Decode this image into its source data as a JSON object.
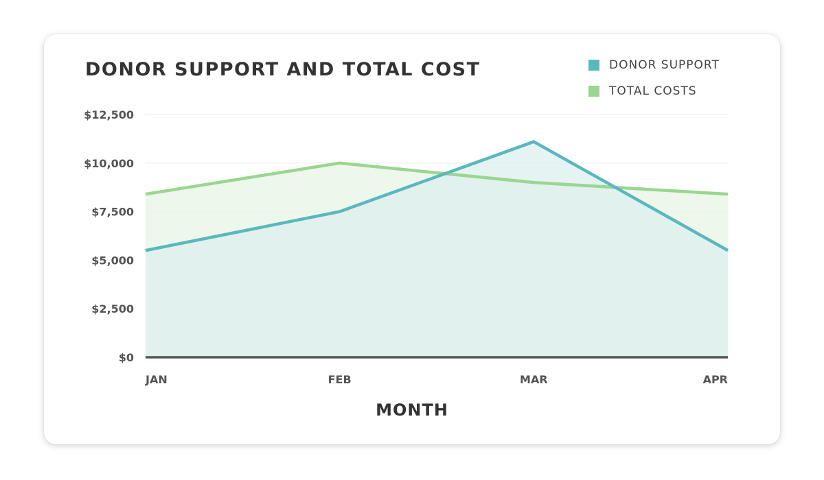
{
  "chart_data": {
    "type": "area",
    "title": "DONOR SUPPORT AND TOTAL COST",
    "xlabel": "MONTH",
    "ylabel": "",
    "categories": [
      "JAN",
      "FEB",
      "MAR",
      "APR"
    ],
    "y_ticks": [
      "$0",
      "$2,500",
      "$5,000",
      "$7,500",
      "$10,000",
      "$12,500"
    ],
    "y_tick_values": [
      0,
      2500,
      5000,
      7500,
      10000,
      12500
    ],
    "ylim": [
      0,
      12500
    ],
    "grid": true,
    "legend_position": "top-right",
    "series": [
      {
        "name": "DONOR SUPPORT",
        "values": [
          5500,
          7500,
          11100,
          5500
        ],
        "color": "#5ab8bd",
        "fill": "#dcefef"
      },
      {
        "name": "TOTAL COSTS",
        "values": [
          8400,
          10000,
          9000,
          8400
        ],
        "color": "#9ad690",
        "fill": "#eaf6e8"
      }
    ]
  }
}
